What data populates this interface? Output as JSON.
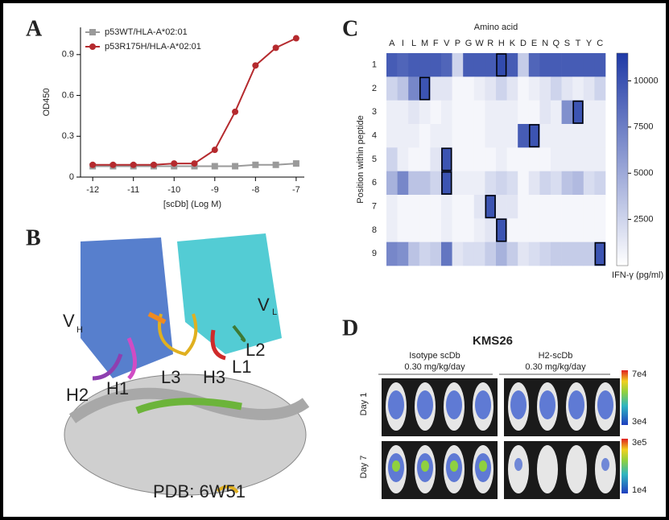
{
  "panel_letters": [
    "A",
    "B",
    "C",
    "D"
  ],
  "chart_data": [
    {
      "type": "line",
      "x_label": "[scDb] (Log M)",
      "y_label": "OD450",
      "x": [
        -12,
        -11.5,
        -11,
        -10.5,
        -10,
        -9.5,
        -9,
        -8.5,
        -8,
        -7.5,
        -7
      ],
      "series": [
        {
          "name": "p53WT/HLA-A*02:01",
          "color": "#9a9a9a",
          "marker": "square",
          "values": [
            0.08,
            0.08,
            0.08,
            0.08,
            0.08,
            0.08,
            0.08,
            0.08,
            0.09,
            0.09,
            0.1
          ]
        },
        {
          "name": "p53R175H/HLA-A*02:01",
          "color": "#b52a2e",
          "marker": "circle",
          "values": [
            0.09,
            0.09,
            0.09,
            0.09,
            0.1,
            0.1,
            0.2,
            0.48,
            0.82,
            0.95,
            1.02
          ]
        }
      ],
      "xlim": [
        -12.3,
        -6.8
      ],
      "xticks": [
        -12,
        -11,
        -10,
        -9,
        -8,
        -7
      ],
      "ylim": [
        0,
        1.1
      ],
      "yticks": [
        0,
        0.3,
        0.6,
        0.9
      ],
      "legend": "top-left"
    },
    {
      "type": "heatmap",
      "x_title": "Amino acid",
      "y_label": "Position within peptide",
      "x": [
        "A",
        "I",
        "L",
        "M",
        "F",
        "V",
        "P",
        "G",
        "W",
        "R",
        "H",
        "K",
        "D",
        "E",
        "N",
        "Q",
        "S",
        "T",
        "Y",
        "C"
      ],
      "y": [
        "1",
        "2",
        "3",
        "4",
        "5",
        "6",
        "7",
        "8",
        "9"
      ],
      "values": [
        [
          9500,
          9000,
          9500,
          9500,
          9500,
          9000,
          2500,
          9500,
          9500,
          9500,
          10500,
          9500,
          3000,
          9000,
          9500,
          9500,
          9500,
          9500,
          9500,
          9500
        ],
        [
          2500,
          3500,
          7000,
          10000,
          1500,
          1500,
          500,
          500,
          1000,
          1500,
          2500,
          1500,
          500,
          1000,
          1500,
          2500,
          1500,
          1000,
          1500,
          2500
        ],
        [
          1000,
          1000,
          1500,
          1000,
          500,
          1000,
          500,
          500,
          500,
          1000,
          1000,
          1000,
          500,
          500,
          1500,
          1000,
          6500,
          10000,
          1000,
          1000
        ],
        [
          1000,
          1000,
          1000,
          500,
          1000,
          1000,
          500,
          500,
          500,
          1000,
          1000,
          1000,
          9500,
          10000,
          1000,
          1000,
          1000,
          1000,
          1000,
          1000
        ],
        [
          2500,
          1000,
          500,
          500,
          1500,
          10000,
          500,
          500,
          500,
          500,
          1000,
          500,
          500,
          500,
          500,
          1000,
          1000,
          1000,
          1000,
          1000
        ],
        [
          4500,
          7000,
          3500,
          3500,
          2500,
          10000,
          1000,
          1000,
          1000,
          2000,
          2500,
          2000,
          500,
          1500,
          2500,
          2000,
          3500,
          4000,
          2000,
          2500
        ],
        [
          1000,
          500,
          500,
          500,
          500,
          1000,
          500,
          500,
          1500,
          10000,
          1500,
          1500,
          500,
          500,
          500,
          500,
          500,
          500,
          500,
          500
        ],
        [
          1000,
          500,
          500,
          500,
          500,
          1000,
          500,
          500,
          1000,
          1500,
          10000,
          500,
          500,
          500,
          500,
          500,
          500,
          500,
          500,
          500
        ],
        [
          7000,
          6500,
          3500,
          2500,
          3000,
          8000,
          1500,
          2000,
          2000,
          3000,
          4500,
          3000,
          1500,
          2000,
          2500,
          3000,
          3000,
          3000,
          3000,
          10000
        ]
      ],
      "outlined_cells": [
        10,
        3,
        17,
        13,
        5,
        5,
        9,
        10,
        19
      ],
      "color_low": "#ffffff",
      "color_high": "#1f3aa6",
      "zlim": [
        0,
        11500
      ],
      "zticks": [
        2500,
        5000,
        7500,
        10000
      ],
      "colorbar_label": "IFN-γ (pg/ml)"
    }
  ],
  "structure_panel": {
    "labels": [
      "V",
      "H",
      "V",
      "L",
      "H2",
      "H1",
      "L3",
      "H3",
      "L1",
      "L2"
    ],
    "caption": "PDB: 6W51"
  },
  "imaging_panel": {
    "title": "KMS26",
    "groups": [
      [
        "Isotype scDb",
        "0.30 mg/kg/day"
      ],
      [
        "H2-scDb",
        "0.30 mg/kg/day"
      ]
    ],
    "rows": [
      "Day 1",
      "Day 7"
    ],
    "scales": [
      [
        "7e4",
        "3e4"
      ],
      [
        "3e5",
        "1e4"
      ]
    ]
  }
}
